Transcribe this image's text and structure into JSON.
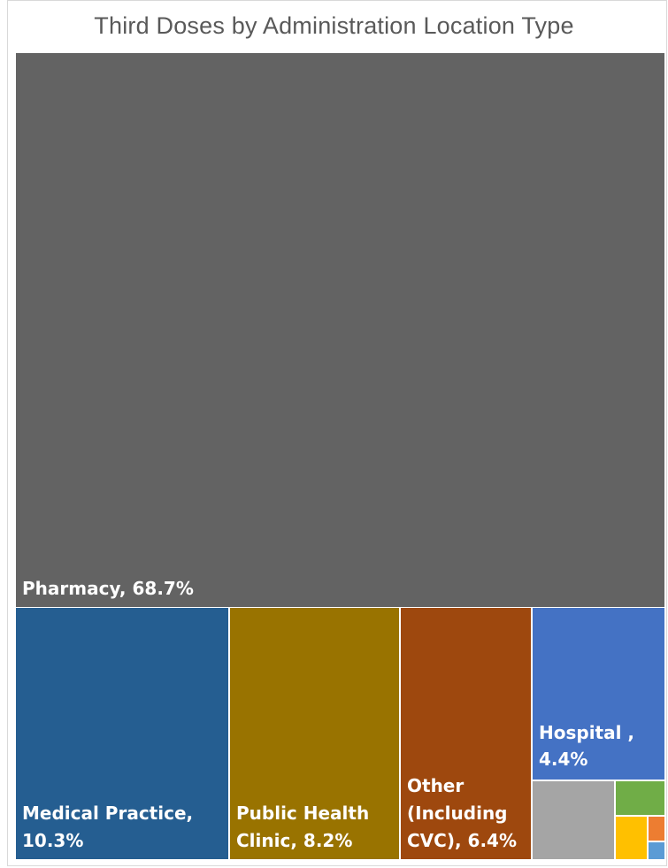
{
  "chart_data": {
    "type": "treemap",
    "title": "Third Doses by Administration Location Type",
    "items": [
      {
        "label_lines": [
          "Pharmacy, 68.7%"
        ],
        "value": 68.7,
        "color": "#636363"
      },
      {
        "label_lines": [
          "Medical Practice,",
          "10.3%"
        ],
        "value": 10.3,
        "color": "#255E91"
      },
      {
        "label_lines": [
          "Public Health",
          "Clinic, 8.2%"
        ],
        "value": 8.2,
        "color": "#997300"
      },
      {
        "label_lines": [
          "Other",
          "(Including",
          "CVC), 6.4%"
        ],
        "value": 6.4,
        "color": "#9E480E"
      },
      {
        "label_lines": [
          "Hospital ,",
          "4.4%"
        ],
        "value": 4.4,
        "color": "#4472C4"
      },
      {
        "label_lines": [],
        "value": 1.1,
        "color": "#A5A5A5"
      },
      {
        "label_lines": [],
        "value": 0.4,
        "color": "#70AD47"
      },
      {
        "label_lines": [],
        "value": 0.3,
        "color": "#FFC000"
      },
      {
        "label_lines": [],
        "value": 0.1,
        "color": "#ED7D31"
      },
      {
        "label_lines": [],
        "value": 0.1,
        "color": "#5B9BD5"
      }
    ]
  }
}
